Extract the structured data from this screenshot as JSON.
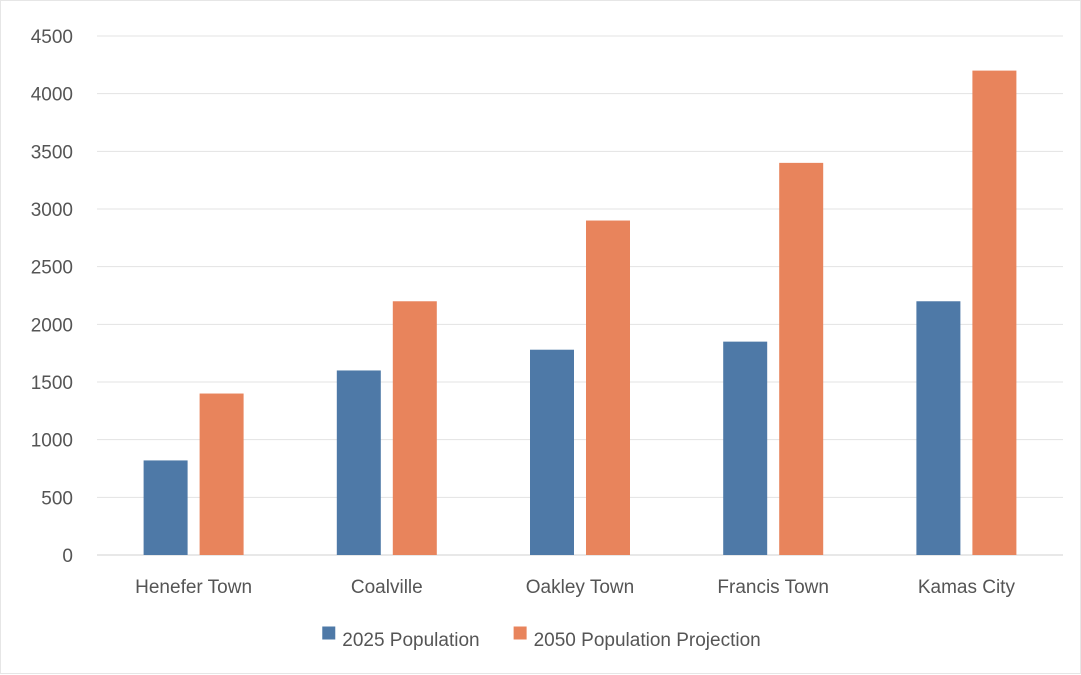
{
  "chart_data": {
    "type": "bar",
    "categories": [
      "Henefer Town",
      "Coalville",
      "Oakley Town",
      "Francis Town",
      "Kamas City"
    ],
    "series": [
      {
        "name": "2025 Population",
        "color": "#4e79a7",
        "values": [
          820,
          1600,
          1780,
          1850,
          2200
        ]
      },
      {
        "name": "2050 Population Projection",
        "color": "#e8845c",
        "values": [
          1400,
          2200,
          2900,
          3400,
          4200
        ]
      }
    ],
    "ylim": [
      0,
      4500
    ],
    "yticks": [
      0,
      500,
      1000,
      1500,
      2000,
      2500,
      3000,
      3500,
      4000,
      4500
    ],
    "grid": true,
    "legend_position": "bottom",
    "title": "",
    "xlabel": "",
    "ylabel": ""
  }
}
